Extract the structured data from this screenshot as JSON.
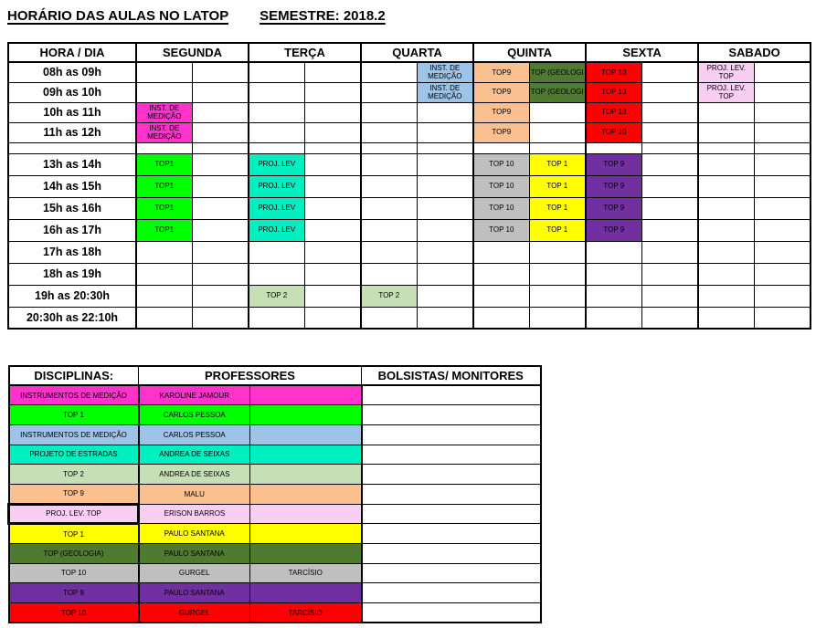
{
  "page": {
    "title": "HORÁRIO DAS AULAS NO LATOP",
    "semester_label": "SEMESTRE: 2018.2"
  },
  "palette": {
    "magenta": "#FF33CC",
    "lightblue": "#9DC3E6",
    "peach": "#FAC090",
    "darkgreen": "#4E7B30",
    "red": "#FF0000",
    "lightpink": "#F8CEF2",
    "green": "#00FF00",
    "turquoise": "#00EFC1",
    "gray": "#BFBFBF",
    "yellow": "#FFFF00",
    "purple": "#7030A0",
    "lightgreen": "#C7DFB5",
    "border": "#000000",
    "text": "#000000"
  },
  "schedule": {
    "headers": [
      "HORA / DIA",
      "SEGUNDA",
      "TERÇA",
      "QUARTA",
      "QUINTA",
      "SEXTA",
      "SABADO"
    ],
    "rows": [
      {
        "time": "08h as 09h",
        "cells": [
          null,
          null,
          null,
          null,
          null,
          {
            "t": "INST. DE MEDIÇÃO",
            "c": "lightblue"
          },
          {
            "t": "TOP9",
            "c": "peach"
          },
          {
            "t": "TOP (GEOLOGI",
            "c": "darkgreen"
          },
          {
            "t": "TOP 10",
            "c": "red"
          },
          null,
          {
            "t": "PROJ. LEV. TOP",
            "c": "lightpink"
          },
          null
        ]
      },
      {
        "time": "09h as 10h",
        "cells": [
          null,
          null,
          null,
          null,
          null,
          {
            "t": "INST. DE MEDIÇÃO",
            "c": "lightblue"
          },
          {
            "t": "TOP9",
            "c": "peach"
          },
          {
            "t": "TOP (GEOLOGI",
            "c": "darkgreen"
          },
          {
            "t": "TOP 10",
            "c": "red"
          },
          null,
          {
            "t": "PROJ. LEV. TOP",
            "c": "lightpink"
          },
          null
        ]
      },
      {
        "time": "10h as 11h",
        "cells": [
          {
            "t": "INST. DE MEDIÇÃO",
            "c": "magenta"
          },
          null,
          null,
          null,
          null,
          null,
          {
            "t": "TOP9",
            "c": "peach"
          },
          null,
          {
            "t": "TOP 10",
            "c": "red"
          },
          null,
          null,
          null
        ]
      },
      {
        "time": "11h as 12h",
        "cells": [
          {
            "t": "INST. DE MEDIÇÃO",
            "c": "magenta"
          },
          null,
          null,
          null,
          null,
          null,
          {
            "t": "TOP9",
            "c": "peach"
          },
          null,
          {
            "t": "TOP 10",
            "c": "red"
          },
          null,
          null,
          null
        ]
      },
      {
        "time": "",
        "gap": true,
        "cells": [
          null,
          null,
          null,
          null,
          null,
          null,
          null,
          null,
          null,
          null,
          null,
          null
        ]
      },
      {
        "time": "13h as 14h",
        "cells": [
          {
            "t": "TOP1",
            "c": "green"
          },
          null,
          {
            "t": "PROJ. LEV",
            "c": "turquoise"
          },
          null,
          null,
          null,
          {
            "t": "TOP 10",
            "c": "gray"
          },
          {
            "t": "TOP 1",
            "c": "yellow"
          },
          {
            "t": "TOP 9",
            "c": "purple"
          },
          null,
          null,
          null
        ]
      },
      {
        "time": "14h as 15h",
        "cells": [
          {
            "t": "TOP1",
            "c": "green"
          },
          null,
          {
            "t": "PROJ. LEV",
            "c": "turquoise"
          },
          null,
          null,
          null,
          {
            "t": "TOP 10",
            "c": "gray"
          },
          {
            "t": "TOP 1",
            "c": "yellow"
          },
          {
            "t": "TOP 9",
            "c": "purple"
          },
          null,
          null,
          null
        ]
      },
      {
        "time": "15h as 16h",
        "cells": [
          {
            "t": "TOP1",
            "c": "green"
          },
          null,
          {
            "t": "PROJ. LEV",
            "c": "turquoise"
          },
          null,
          null,
          null,
          {
            "t": "TOP 10",
            "c": "gray"
          },
          {
            "t": "TOP 1",
            "c": "yellow"
          },
          {
            "t": "TOP 9",
            "c": "purple"
          },
          null,
          null,
          null
        ]
      },
      {
        "time": "16h as 17h",
        "cells": [
          {
            "t": "TOP1",
            "c": "green"
          },
          null,
          {
            "t": "PROJ. LEV",
            "c": "turquoise"
          },
          null,
          null,
          null,
          {
            "t": "TOP 10",
            "c": "gray"
          },
          {
            "t": "TOP 1",
            "c": "yellow"
          },
          {
            "t": "TOP 9",
            "c": "purple"
          },
          null,
          null,
          null
        ]
      },
      {
        "time": "17h as 18h",
        "cells": [
          null,
          null,
          null,
          null,
          null,
          null,
          null,
          null,
          null,
          null,
          null,
          null
        ]
      },
      {
        "time": "18h as 19h",
        "cells": [
          null,
          null,
          null,
          null,
          null,
          null,
          null,
          null,
          null,
          null,
          null,
          null
        ]
      },
      {
        "time": "19h as 20:30h",
        "cells": [
          null,
          null,
          {
            "t": "TOP 2",
            "c": "lightgreen"
          },
          null,
          {
            "t": "TOP 2",
            "c": "lightgreen"
          },
          null,
          null,
          null,
          null,
          null,
          null,
          null
        ]
      },
      {
        "time": "20:30h as 22:10h",
        "cells": [
          null,
          null,
          null,
          null,
          null,
          null,
          null,
          null,
          null,
          null,
          null,
          null
        ]
      }
    ]
  },
  "staff": {
    "headers": [
      "DISCIPLINAS:",
      "PROFESSORES",
      "BOLSISTAS/ MONITORES"
    ],
    "rows": [
      {
        "discipline": "INSTRUMENTOS DE MEDIÇÃO",
        "professor": "KAROLINE JAMOUR",
        "monitor": "",
        "c": "magenta"
      },
      {
        "discipline": "TOP 1",
        "professor": "CARLOS PESSOA",
        "monitor": "",
        "c": "green"
      },
      {
        "discipline": "INSTRUMENTOS DE MEDIÇÃO",
        "professor": "CARLOS PESSOA",
        "monitor": "",
        "c": "lightblue"
      },
      {
        "discipline": "PROJETO DE ESTRADAS",
        "professor": "ANDREA DE SEIXAS",
        "monitor": "",
        "c": "turquoise"
      },
      {
        "discipline": "TOP 2",
        "professor": "ANDREA DE SEIXAS",
        "monitor": "",
        "c": "lightgreen"
      },
      {
        "discipline": "TOP 9",
        "professor": "MALU",
        "monitor": "",
        "c": "peach"
      },
      {
        "discipline": "PROJ. LEV. TOP",
        "professor": "ERISON BARROS",
        "monitor": "",
        "c": "lightpink",
        "emphasized": true
      },
      {
        "discipline": "TOP 1",
        "professor": "PAULO SANTANA",
        "monitor": "",
        "c": "yellow"
      },
      {
        "discipline": "TOP (GEOLOGIA)",
        "professor": "PAULO SANTANA",
        "monitor": "",
        "c": "darkgreen"
      },
      {
        "discipline": "TOP 10",
        "professor": "GURGEL",
        "monitor": "TARCÍSIO",
        "c": "gray"
      },
      {
        "discipline": "TOP 9",
        "professor": "PAULO SANTANA",
        "monitor": "",
        "c": "purple"
      },
      {
        "discipline": "TOP 10",
        "professor": "GURGEL",
        "monitor": "TARCÍSIO",
        "c": "red"
      }
    ]
  }
}
